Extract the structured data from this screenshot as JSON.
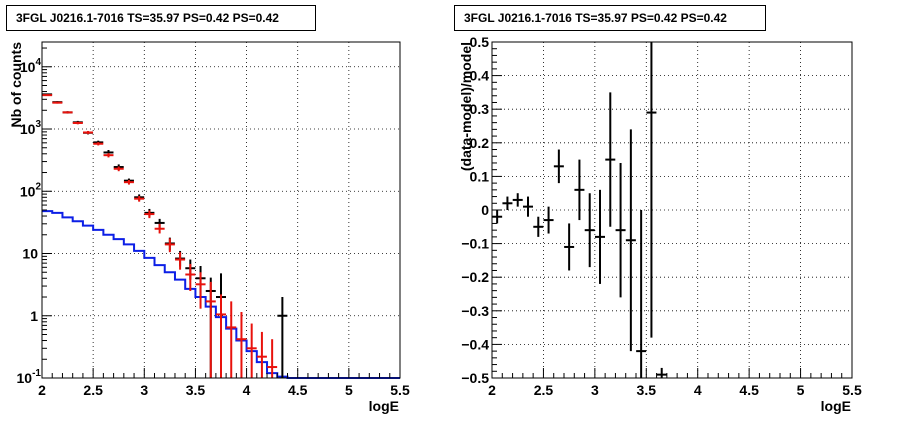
{
  "chart_data": [
    {
      "type": "histogram",
      "title": "3FGL J0216.1-7016 TS=35.97 PS=0.42 PS=0.42",
      "xlabel": "logE",
      "ylabel": "Nb of counts",
      "xlim": [
        2,
        5.5
      ],
      "ylim": [
        0.1,
        25000
      ],
      "log_y": true,
      "grid": true,
      "xticks": [
        "2",
        "2.5",
        "3",
        "3.5",
        "4",
        "4.5",
        "5",
        "5.5"
      ],
      "yticks": [
        {
          "v": 0.1,
          "base": "10",
          "exp": "-1"
        },
        {
          "v": 1,
          "base": "1",
          "exp": ""
        },
        {
          "v": 10,
          "base": "10",
          "exp": ""
        },
        {
          "v": 100,
          "base": "10",
          "exp": "2"
        },
        {
          "v": 1000,
          "base": "10",
          "exp": "3"
        },
        {
          "v": 10000,
          "base": "10",
          "exp": "4"
        }
      ],
      "series": [
        {
          "color": "#000000",
          "style": "errorbar",
          "points": [
            {
              "x": 2.05,
              "y": 3600,
              "lo": 3480,
              "hi": 3720
            },
            {
              "x": 2.15,
              "y": 2700,
              "lo": 2600,
              "hi": 2800
            },
            {
              "x": 2.25,
              "y": 1850,
              "lo": 1770,
              "hi": 1930
            },
            {
              "x": 2.35,
              "y": 1280,
              "lo": 1210,
              "hi": 1350
            },
            {
              "x": 2.45,
              "y": 870,
              "lo": 820,
              "hi": 920
            },
            {
              "x": 2.55,
              "y": 610,
              "lo": 570,
              "hi": 650
            },
            {
              "x": 2.65,
              "y": 420,
              "lo": 380,
              "hi": 460
            },
            {
              "x": 2.75,
              "y": 245,
              "lo": 220,
              "hi": 270
            },
            {
              "x": 2.85,
              "y": 148,
              "lo": 136,
              "hi": 160
            },
            {
              "x": 2.95,
              "y": 80,
              "lo": 71,
              "hi": 89
            },
            {
              "x": 3.05,
              "y": 45,
              "lo": 39,
              "hi": 52
            },
            {
              "x": 3.15,
              "y": 31,
              "lo": 26,
              "hi": 36
            },
            {
              "x": 3.25,
              "y": 14.5,
              "lo": 11.2,
              "hi": 18
            },
            {
              "x": 3.35,
              "y": 8.3,
              "lo": 6.2,
              "hi": 11
            },
            {
              "x": 3.45,
              "y": 5.8,
              "lo": 3.8,
              "hi": 8
            },
            {
              "x": 3.55,
              "y": 4.0,
              "lo": 1.9,
              "hi": 6.3
            },
            {
              "x": 3.65,
              "y": 2.5,
              "lo": 0.1,
              "hi": 4.1
            },
            {
              "x": 3.75,
              "y": 2.0,
              "lo": 0.1,
              "hi": 4.8
            },
            {
              "x": 4.35,
              "y": 1.0,
              "lo": 0.1,
              "hi": 2.0
            }
          ]
        },
        {
          "color": "#e8120c",
          "style": "errorbar",
          "points": [
            {
              "x": 2.05,
              "y": 3500,
              "lo": 3400,
              "hi": 3600
            },
            {
              "x": 2.15,
              "y": 2650,
              "lo": 2560,
              "hi": 2740
            },
            {
              "x": 2.25,
              "y": 1850,
              "lo": 1780,
              "hi": 1920
            },
            {
              "x": 2.35,
              "y": 1250,
              "lo": 1190,
              "hi": 1310
            },
            {
              "x": 2.45,
              "y": 880,
              "lo": 830,
              "hi": 930
            },
            {
              "x": 2.55,
              "y": 580,
              "lo": 545,
              "hi": 615
            },
            {
              "x": 2.65,
              "y": 380,
              "lo": 350,
              "hi": 410
            },
            {
              "x": 2.75,
              "y": 230,
              "lo": 210,
              "hi": 250
            },
            {
              "x": 2.85,
              "y": 140,
              "lo": 128,
              "hi": 152
            },
            {
              "x": 2.95,
              "y": 76,
              "lo": 68,
              "hi": 84
            },
            {
              "x": 3.05,
              "y": 43,
              "lo": 37,
              "hi": 49
            },
            {
              "x": 3.15,
              "y": 25,
              "lo": 21,
              "hi": 30
            },
            {
              "x": 3.25,
              "y": 14,
              "lo": 10.5,
              "hi": 17.5
            },
            {
              "x": 3.35,
              "y": 8,
              "lo": 5.5,
              "hi": 10.5
            },
            {
              "x": 3.45,
              "y": 4.6,
              "lo": 2.5,
              "hi": 6.8
            },
            {
              "x": 3.55,
              "y": 3.2,
              "lo": 1.3,
              "hi": 5.0
            },
            {
              "x": 3.65,
              "y": 1.7,
              "lo": 0.1,
              "hi": 3.5
            },
            {
              "x": 3.75,
              "y": 1.05,
              "lo": 0.1,
              "hi": 2.2
            },
            {
              "x": 3.85,
              "y": 0.65,
              "lo": 0.1,
              "hi": 1.7
            },
            {
              "x": 3.95,
              "y": 0.42,
              "lo": 0.1,
              "hi": 1.15
            },
            {
              "x": 4.05,
              "y": 0.3,
              "lo": 0.1,
              "hi": 0.75
            },
            {
              "x": 4.15,
              "y": 0.22,
              "lo": 0.1,
              "hi": 0.55
            },
            {
              "x": 4.25,
              "y": 0.15,
              "lo": 0.1,
              "hi": 0.42
            }
          ]
        },
        {
          "color": "#0c1fe6",
          "style": "step",
          "edges": [
            2.0,
            2.1,
            2.2,
            2.3,
            2.4,
            2.5,
            2.6,
            2.7,
            2.8,
            2.9,
            3.0,
            3.1,
            3.2,
            3.3,
            3.4,
            3.5,
            3.6,
            3.7,
            3.8,
            3.9,
            4.0,
            4.1,
            4.2,
            4.3,
            4.4,
            5.5
          ],
          "values": [
            48,
            45,
            38,
            33,
            28,
            24,
            20,
            17,
            14,
            11,
            8.5,
            6.5,
            5.0,
            3.8,
            2.7,
            2.0,
            1.4,
            0.95,
            0.62,
            0.4,
            0.27,
            0.18,
            0.12,
            0.105,
            0.1
          ]
        }
      ]
    },
    {
      "type": "scatter",
      "title": "3FGL J0216.1-7016 TS=35.97 PS=0.42 PS=0.42",
      "xlabel": "logE",
      "ylabel": "(data-model)/model",
      "xlim": [
        2,
        5.5
      ],
      "ylim": [
        -0.5,
        0.5
      ],
      "grid": true,
      "xticks": [
        "2",
        "2.5",
        "3",
        "3.5",
        "4",
        "4.5",
        "5",
        "5.5"
      ],
      "yticks": [
        "−0.5",
        "−0.4",
        "−0.3",
        "−0.2",
        "−0.1",
        "0",
        "0.1",
        "0.2",
        "0.3",
        "0.4",
        "0.5"
      ],
      "series": [
        {
          "color": "#000000",
          "points": [
            {
              "x": 2.05,
              "y": -0.02,
              "err": 0.02
            },
            {
              "x": 2.15,
              "y": 0.02,
              "err": 0.02
            },
            {
              "x": 2.25,
              "y": 0.03,
              "err": 0.02
            },
            {
              "x": 2.35,
              "y": 0.01,
              "err": 0.03
            },
            {
              "x": 2.45,
              "y": -0.05,
              "err": 0.03
            },
            {
              "x": 2.55,
              "y": -0.03,
              "err": 0.04
            },
            {
              "x": 2.65,
              "y": 0.13,
              "err": 0.05
            },
            {
              "x": 2.75,
              "y": -0.11,
              "err": 0.07
            },
            {
              "x": 2.85,
              "y": 0.06,
              "err": 0.09
            },
            {
              "x": 2.95,
              "y": -0.06,
              "err": 0.11
            },
            {
              "x": 3.05,
              "y": -0.08,
              "err": 0.14
            },
            {
              "x": 3.15,
              "y": 0.15,
              "err": 0.2
            },
            {
              "x": 3.25,
              "y": -0.06,
              "err": 0.2
            },
            {
              "x": 3.35,
              "y": -0.09,
              "err": 0.33
            },
            {
              "x": 3.45,
              "y": -0.42,
              "err": 0.42
            },
            {
              "x": 3.55,
              "y": 0.29,
              "err": 0.67
            },
            {
              "x": 3.65,
              "y": -0.49,
              "err": 0.02
            }
          ]
        }
      ]
    }
  ]
}
